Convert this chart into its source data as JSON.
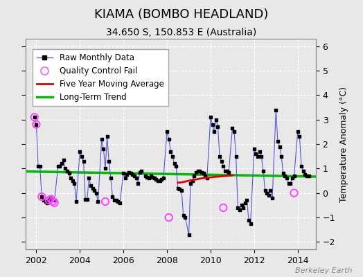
{
  "title": "KIAMA (BOMBO HEADLAND)",
  "subtitle": "34.650 S, 150.853 E (Australia)",
  "ylabel": "Temperature Anomaly (°C)",
  "credit": "Berkeley Earth",
  "ylim": [
    -2.3,
    6.3
  ],
  "xlim": [
    2001.5,
    2014.83
  ],
  "yticks": [
    -2,
    -1,
    0,
    1,
    2,
    3,
    4,
    5,
    6
  ],
  "xticks": [
    2002,
    2004,
    2006,
    2008,
    2010,
    2012,
    2014
  ],
  "bg_color": "#e8e8e8",
  "grid_color": "#d0d0d0",
  "raw_x": [
    2001.917,
    2002.0,
    2002.083,
    2002.167,
    2002.25,
    2002.333,
    2002.417,
    2002.5,
    2002.583,
    2002.667,
    2002.75,
    2002.833,
    2003.0,
    2003.083,
    2003.167,
    2003.25,
    2003.333,
    2003.417,
    2003.5,
    2003.583,
    2003.667,
    2003.75,
    2003.833,
    2004.0,
    2004.083,
    2004.167,
    2004.25,
    2004.333,
    2004.417,
    2004.5,
    2004.583,
    2004.667,
    2004.75,
    2004.833,
    2005.0,
    2005.083,
    2005.167,
    2005.25,
    2005.333,
    2005.417,
    2005.5,
    2005.583,
    2005.667,
    2005.75,
    2005.833,
    2006.0,
    2006.083,
    2006.167,
    2006.25,
    2006.333,
    2006.417,
    2006.5,
    2006.583,
    2006.667,
    2006.75,
    2006.833,
    2007.0,
    2007.083,
    2007.167,
    2007.25,
    2007.333,
    2007.417,
    2007.5,
    2007.583,
    2007.667,
    2007.75,
    2007.833,
    2008.0,
    2008.083,
    2008.167,
    2008.25,
    2008.333,
    2008.417,
    2008.5,
    2008.583,
    2008.667,
    2008.75,
    2008.833,
    2009.0,
    2009.083,
    2009.167,
    2009.25,
    2009.333,
    2009.417,
    2009.5,
    2009.583,
    2009.667,
    2009.75,
    2009.833,
    2010.0,
    2010.083,
    2010.167,
    2010.25,
    2010.333,
    2010.417,
    2010.5,
    2010.583,
    2010.667,
    2010.75,
    2010.833,
    2011.0,
    2011.083,
    2011.167,
    2011.25,
    2011.333,
    2011.417,
    2011.5,
    2011.583,
    2011.667,
    2011.75,
    2011.833,
    2012.0,
    2012.083,
    2012.167,
    2012.25,
    2012.333,
    2012.417,
    2012.5,
    2012.583,
    2012.667,
    2012.75,
    2012.833,
    2013.0,
    2013.083,
    2013.167,
    2013.25,
    2013.333,
    2013.417,
    2013.5,
    2013.583,
    2013.667,
    2013.75,
    2013.833,
    2014.0,
    2014.083,
    2014.167,
    2014.25,
    2014.333,
    2014.417,
    2014.5
  ],
  "raw_y": [
    3.1,
    2.8,
    1.1,
    1.1,
    -0.15,
    -0.3,
    -0.35,
    -0.4,
    -0.3,
    -0.2,
    -0.25,
    -0.3,
    1.1,
    1.1,
    1.2,
    1.35,
    1.0,
    0.9,
    0.8,
    0.6,
    0.5,
    0.4,
    -0.35,
    1.7,
    1.5,
    1.3,
    -0.25,
    -0.25,
    0.6,
    0.3,
    0.2,
    0.1,
    0.0,
    -0.35,
    2.2,
    1.8,
    1.0,
    2.3,
    1.3,
    0.6,
    -0.15,
    -0.3,
    -0.3,
    -0.35,
    -0.4,
    0.8,
    0.6,
    0.75,
    0.85,
    0.8,
    0.75,
    0.7,
    0.6,
    0.4,
    0.85,
    0.9,
    0.7,
    0.65,
    0.6,
    0.7,
    0.65,
    0.6,
    0.55,
    0.5,
    0.5,
    0.55,
    0.6,
    2.5,
    2.2,
    1.7,
    1.5,
    1.2,
    1.1,
    0.2,
    0.15,
    0.1,
    -0.9,
    -1.0,
    -1.7,
    0.4,
    0.5,
    0.7,
    0.85,
    0.9,
    0.9,
    0.85,
    0.8,
    0.7,
    0.6,
    3.1,
    2.8,
    2.5,
    3.0,
    2.7,
    1.5,
    1.3,
    1.1,
    0.9,
    0.9,
    0.85,
    2.65,
    2.5,
    1.5,
    -0.6,
    -0.7,
    -0.5,
    -0.6,
    -0.4,
    -0.3,
    -1.1,
    -1.25,
    1.8,
    1.6,
    1.5,
    1.7,
    1.5,
    0.9,
    0.1,
    0.0,
    -0.1,
    0.1,
    -0.2,
    3.4,
    2.1,
    1.9,
    1.5,
    0.8,
    0.7,
    0.6,
    0.4,
    0.4,
    0.6,
    0.7,
    2.5,
    2.3,
    1.1,
    0.9,
    0.75,
    0.7,
    0.7
  ],
  "qc_fail_x": [
    2001.917,
    2002.0,
    2002.25,
    2002.583,
    2002.667,
    2002.75,
    2002.833,
    2005.167,
    2008.083,
    2010.583,
    2013.833
  ],
  "qc_fail_y": [
    3.1,
    2.8,
    -0.15,
    -0.3,
    -0.25,
    -0.35,
    -0.4,
    -0.35,
    -1.0,
    -0.6,
    -0.0
  ],
  "ma5_x": [
    2008.5,
    2008.7,
    2009.0,
    2009.3,
    2009.6,
    2009.9,
    2010.2,
    2010.5,
    2010.75,
    2011.0
  ],
  "ma5_y": [
    0.42,
    0.44,
    0.5,
    0.55,
    0.6,
    0.63,
    0.66,
    0.68,
    0.7,
    0.72
  ],
  "trend_x": [
    2001.5,
    2014.83
  ],
  "trend_y": [
    0.88,
    0.67
  ],
  "line_color": "#5555dd",
  "dot_color": "#000000",
  "qc_color": "#ff44ff",
  "ma5_color": "#dd0000",
  "trend_color": "#00bb00",
  "title_fontsize": 13,
  "subtitle_fontsize": 10,
  "tick_fontsize": 9,
  "ylabel_fontsize": 9,
  "legend_fontsize": 8.5,
  "credit_fontsize": 8
}
